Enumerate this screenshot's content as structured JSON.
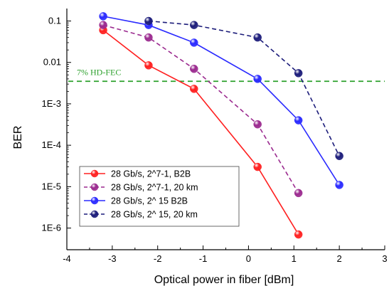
{
  "chart_data": {
    "type": "line",
    "xlabel": "Optical power in fiber [dBm]",
    "ylabel": "BER",
    "xlim": [
      -4,
      3
    ],
    "ylim": [
      3e-07,
      0.2
    ],
    "y_scale": "log",
    "x_ticks": [
      -4,
      -3,
      -2,
      -1,
      0,
      1,
      2,
      3
    ],
    "y_ticks": [
      {
        "value": 0.1,
        "label": "0.1"
      },
      {
        "value": 0.01,
        "label": "0.01"
      },
      {
        "value": 0.001,
        "label": "1E-3"
      },
      {
        "value": 0.0001,
        "label": "1E-4"
      },
      {
        "value": 1e-05,
        "label": "1E-5"
      },
      {
        "value": 1e-06,
        "label": "1E-6"
      }
    ],
    "grid": false,
    "legend_position": "bottom-left",
    "threshold": {
      "value": 0.0035,
      "label": "7% HD-FEC",
      "color": "#2ca02c"
    },
    "series": [
      {
        "name": "28 Gb/s, 2^7-1, B2B",
        "color": "#ff2020",
        "dash": "solid",
        "x": [
          -3.2,
          -2.2,
          -1.2,
          0.2,
          1.1
        ],
        "y": [
          0.06,
          0.0085,
          0.0023,
          3e-05,
          7e-07
        ]
      },
      {
        "name": "28 Gb/s, 2^7-1, 20 km",
        "color": "#9b2a8f",
        "dash": "dashed",
        "x": [
          -3.2,
          -2.2,
          -1.2,
          0.2,
          1.1
        ],
        "y": [
          0.08,
          0.04,
          0.007,
          0.00032,
          7e-06
        ]
      },
      {
        "name": "28 Gb/s, 2^ 15 B2B",
        "color": "#2a2aff",
        "dash": "solid",
        "x": [
          -3.2,
          -2.2,
          -1.2,
          0.2,
          1.1,
          2.0
        ],
        "y": [
          0.13,
          0.08,
          0.03,
          0.004,
          0.0004,
          1.1e-05
        ]
      },
      {
        "name": "28 Gb/s, 2^ 15, 20 km",
        "color": "#1c1c7a",
        "dash": "dashed",
        "x": [
          -2.2,
          -1.2,
          0.2,
          1.1,
          2.0
        ],
        "y": [
          0.1,
          0.08,
          0.04,
          0.0055,
          5.5e-05
        ]
      }
    ]
  }
}
